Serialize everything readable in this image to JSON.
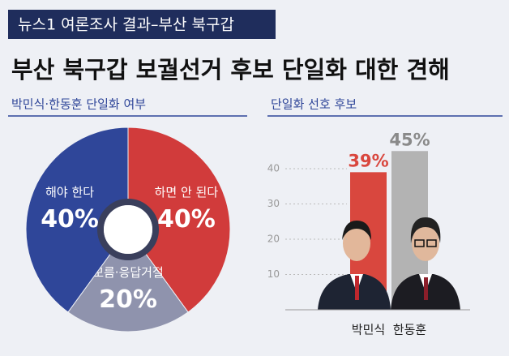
{
  "header": {
    "tag": "뉴스1 여론조사 결과–부산 북구갑",
    "title": "부산 북구갑 보궐선거 후보 단일화 대한 견해"
  },
  "chart_data": [
    {
      "type": "pie",
      "title": "박민식·한동훈 단일화 여부",
      "categories": [
        "하면 안 된다",
        "모름·응답거절",
        "해야 한다"
      ],
      "values": [
        40,
        20,
        40
      ],
      "value_labels": [
        "40%",
        "20%",
        "40%"
      ],
      "colors": [
        "#d13b3b",
        "#8f93ad",
        "#2f4699"
      ]
    },
    {
      "type": "bar",
      "title": "단일화 선호 후보",
      "categories": [
        "박민식",
        "한동훈"
      ],
      "values": [
        39,
        45
      ],
      "value_labels": [
        "39%",
        "45%"
      ],
      "colors": [
        "#d9473e",
        "#b3b3b3"
      ],
      "label_colors": [
        "#d9473e",
        "#8a8a8a"
      ],
      "ylim": [
        0,
        50
      ],
      "yticks": [
        10,
        20,
        30,
        40
      ],
      "grid": true
    }
  ]
}
